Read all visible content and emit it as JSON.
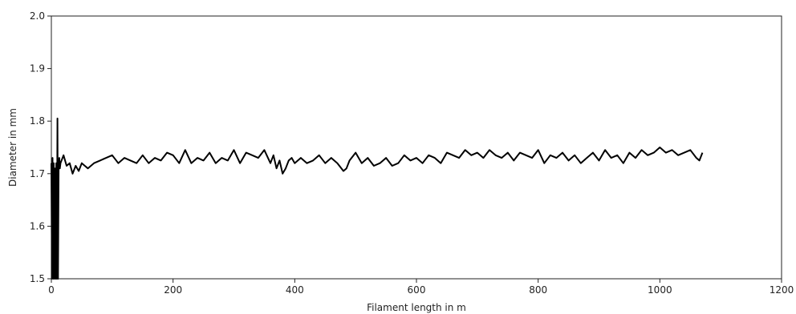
{
  "chart_data": {
    "type": "line",
    "title": "",
    "xlabel": "Filament length in m",
    "ylabel": "Diameter in mm",
    "xlim": [
      0,
      1200
    ],
    "ylim": [
      1.5,
      2.0
    ],
    "x_ticks": [
      0,
      200,
      400,
      600,
      800,
      1000,
      1200
    ],
    "y_ticks": [
      1.5,
      1.6,
      1.7,
      1.8,
      1.9,
      2.0
    ],
    "x_tick_labels": [
      "0",
      "200",
      "400",
      "600",
      "800",
      "1000",
      "1200"
    ],
    "y_tick_labels": [
      "1.5",
      "1.6",
      "1.7",
      "1.8",
      "1.9",
      "2.0"
    ],
    "grid": false,
    "line_color": "#000000",
    "series": [
      {
        "x": [
          0,
          1,
          2,
          3,
          4,
          5,
          6,
          7,
          8,
          9,
          10,
          11,
          12,
          13,
          14,
          15,
          20,
          25,
          30,
          35,
          40,
          45,
          50,
          55,
          60,
          70,
          80,
          90,
          100,
          110,
          120,
          130,
          140,
          150,
          160,
          170,
          180,
          190,
          200,
          210,
          220,
          230,
          240,
          250,
          260,
          270,
          280,
          290,
          300,
          310,
          320,
          330,
          340,
          350,
          360,
          365,
          370,
          375,
          380,
          385,
          390,
          395,
          400,
          410,
          420,
          430,
          440,
          450,
          460,
          470,
          480,
          485,
          490,
          500,
          510,
          520,
          530,
          540,
          550,
          560,
          570,
          580,
          590,
          600,
          610,
          620,
          630,
          640,
          650,
          660,
          670,
          680,
          690,
          700,
          710,
          720,
          730,
          740,
          750,
          760,
          770,
          780,
          790,
          800,
          810,
          820,
          830,
          840,
          850,
          860,
          870,
          880,
          890,
          900,
          910,
          920,
          930,
          940,
          950,
          960,
          970,
          980,
          990,
          1000,
          1010,
          1020,
          1030,
          1040,
          1050,
          1060,
          1065,
          1070
        ],
        "y": [
          1.72,
          1.5,
          1.73,
          1.5,
          1.72,
          1.5,
          1.71,
          1.5,
          1.72,
          1.5,
          1.805,
          1.5,
          1.72,
          1.73,
          1.71,
          1.72,
          1.735,
          1.715,
          1.72,
          1.7,
          1.715,
          1.705,
          1.72,
          1.715,
          1.71,
          1.72,
          1.725,
          1.73,
          1.735,
          1.72,
          1.73,
          1.725,
          1.72,
          1.735,
          1.72,
          1.73,
          1.725,
          1.74,
          1.735,
          1.72,
          1.745,
          1.72,
          1.73,
          1.725,
          1.74,
          1.72,
          1.73,
          1.725,
          1.745,
          1.72,
          1.74,
          1.735,
          1.73,
          1.745,
          1.72,
          1.735,
          1.71,
          1.725,
          1.7,
          1.71,
          1.725,
          1.73,
          1.72,
          1.73,
          1.72,
          1.725,
          1.735,
          1.72,
          1.73,
          1.72,
          1.705,
          1.71,
          1.725,
          1.74,
          1.72,
          1.73,
          1.715,
          1.72,
          1.73,
          1.715,
          1.72,
          1.735,
          1.725,
          1.73,
          1.72,
          1.735,
          1.73,
          1.72,
          1.74,
          1.735,
          1.73,
          1.745,
          1.735,
          1.74,
          1.73,
          1.745,
          1.735,
          1.73,
          1.74,
          1.725,
          1.74,
          1.735,
          1.73,
          1.745,
          1.72,
          1.735,
          1.73,
          1.74,
          1.725,
          1.735,
          1.72,
          1.73,
          1.74,
          1.725,
          1.745,
          1.73,
          1.735,
          1.72,
          1.74,
          1.73,
          1.745,
          1.735,
          1.74,
          1.75,
          1.74,
          1.745,
          1.735,
          1.74,
          1.745,
          1.73,
          1.725,
          1.74
        ]
      }
    ]
  }
}
